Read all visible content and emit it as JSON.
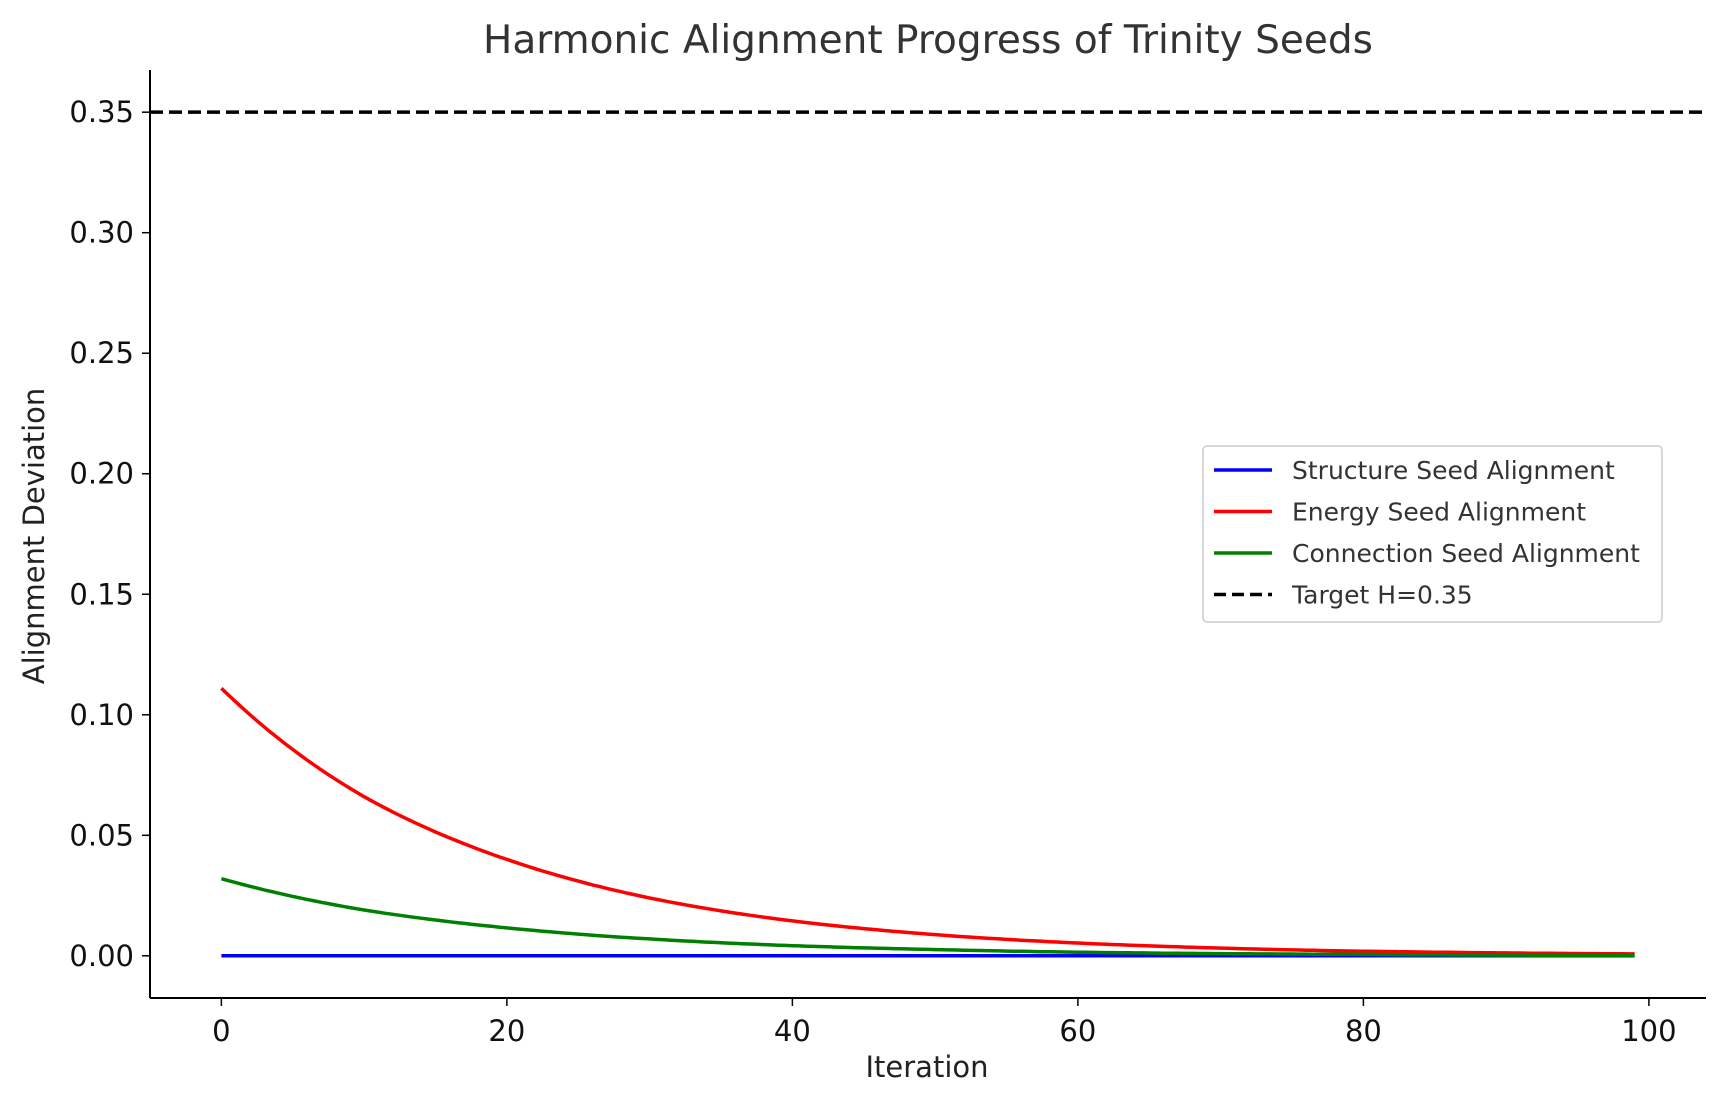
{
  "chart_data": {
    "type": "line",
    "title": "Harmonic Alignment Progress of Trinity Seeds",
    "xlabel": "Iteration",
    "ylabel": "Alignment Deviation",
    "xlim": [
      -5,
      104
    ],
    "ylim": [
      -0.0175,
      0.3675
    ],
    "xticks": [
      0,
      20,
      40,
      60,
      80,
      100
    ],
    "yticks": [
      0.0,
      0.05,
      0.1,
      0.15,
      0.2,
      0.25,
      0.3,
      0.35
    ],
    "xtick_labels": [
      "0",
      "20",
      "40",
      "60",
      "80",
      "100"
    ],
    "ytick_labels": [
      "0.00",
      "0.05",
      "0.10",
      "0.15",
      "0.20",
      "0.25",
      "0.30",
      "0.35"
    ],
    "grid": false,
    "legend_position": "center-right",
    "x": [
      0,
      10,
      20,
      30,
      40,
      50,
      60,
      70,
      80,
      90,
      99
    ],
    "series": [
      {
        "name": "Structure Seed Alignment",
        "color": "#0000ff",
        "style": "solid",
        "values": [
          0,
          0,
          0,
          0,
          0,
          0,
          0,
          0,
          0,
          0,
          0
        ]
      },
      {
        "name": "Energy Seed Alignment",
        "color": "#ff0000",
        "style": "solid",
        "values": [
          0.111,
          0.066,
          0.04,
          0.024,
          0.0145,
          0.0088,
          0.0053,
          0.0032,
          0.0019,
          0.0012,
          0.0008
        ]
      },
      {
        "name": "Connection Seed Alignment",
        "color": "#008000",
        "style": "solid",
        "values": [
          0.032,
          0.019,
          0.0116,
          0.007,
          0.0042,
          0.0026,
          0.0015,
          0.0009,
          0.0006,
          0.0003,
          0.0002
        ]
      }
    ],
    "reference_lines": [
      {
        "name": "Target H=0.35",
        "y": 0.35,
        "color": "#000000",
        "style": "dashed"
      }
    ]
  }
}
